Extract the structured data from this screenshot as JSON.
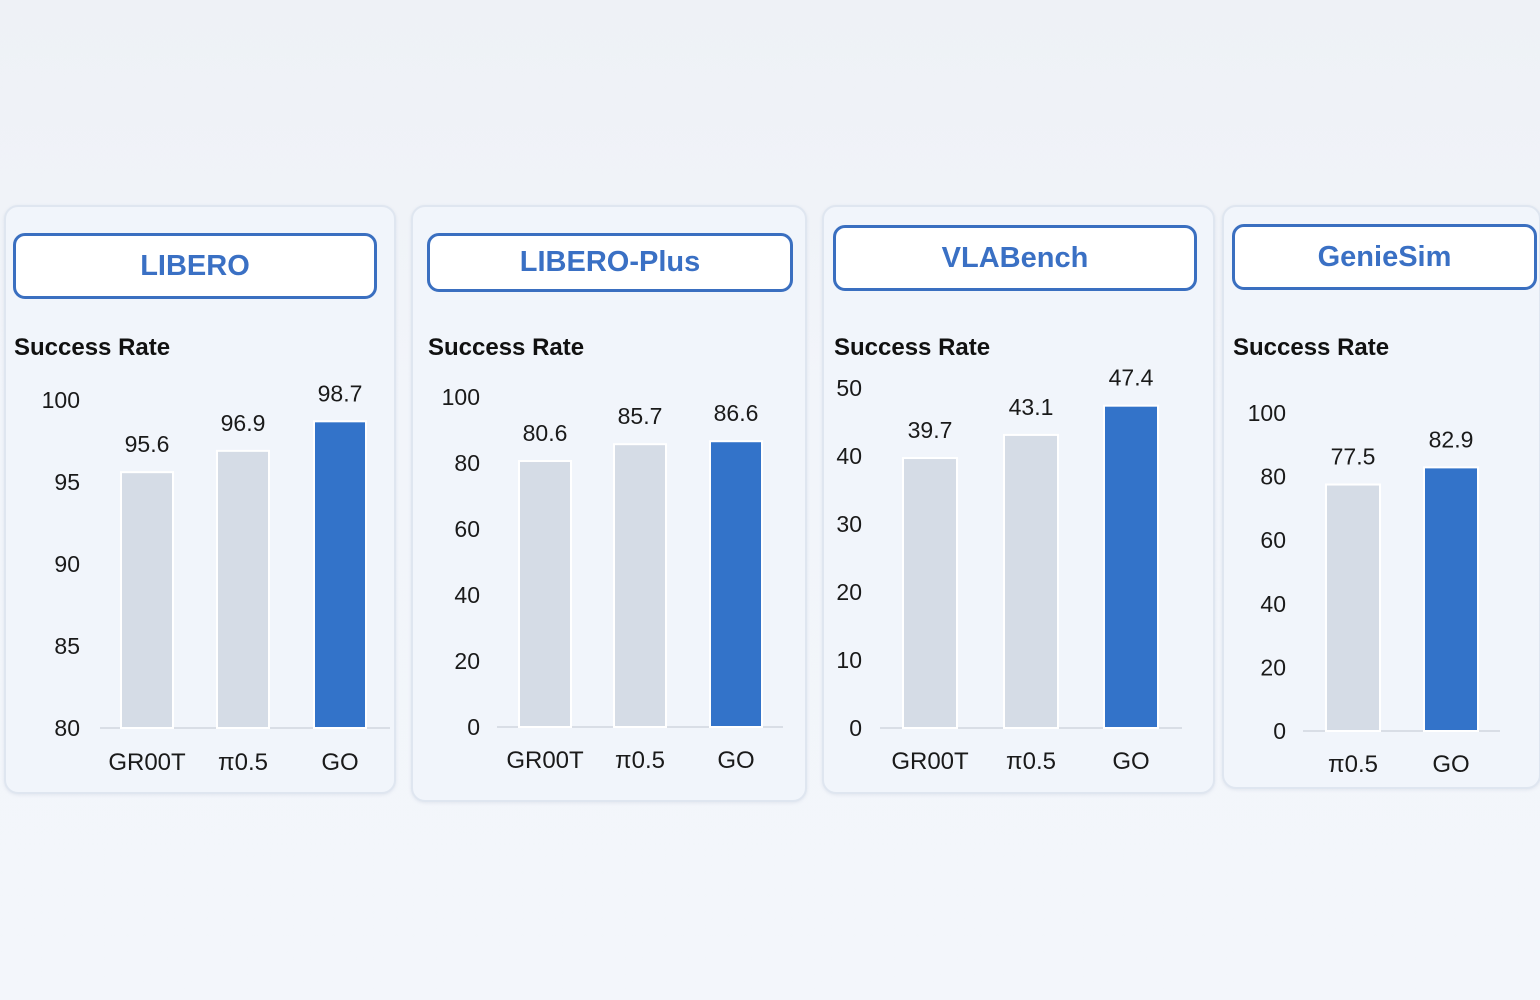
{
  "colors": {
    "highlight": "#3373c9",
    "baseline_bars": "#d5dce6",
    "title": "#3a70c4"
  },
  "chart_data": [
    {
      "type": "bar",
      "title": "LIBERO",
      "ylabel": "Success Rate",
      "categories": [
        "GR00T",
        "π0.5",
        "GO"
      ],
      "values": [
        95.6,
        96.9,
        98.7
      ],
      "data_labels": [
        "95.6",
        "96.9",
        "98.7"
      ],
      "ylim": [
        80,
        100
      ],
      "yticks": [
        "80",
        "85",
        "90",
        "95",
        "100"
      ],
      "highlight": "GO",
      "grid": false
    },
    {
      "type": "bar",
      "title": "LIBERO-Plus",
      "ylabel": "Success Rate",
      "categories": [
        "GR00T",
        "π0.5",
        "GO"
      ],
      "values": [
        80.6,
        85.7,
        86.6
      ],
      "data_labels": [
        "80.6",
        "85.7",
        "86.6"
      ],
      "ylim": [
        0,
        100
      ],
      "yticks": [
        "0",
        "20",
        "40",
        "60",
        "80",
        "100"
      ],
      "highlight": "GO",
      "grid": false
    },
    {
      "type": "bar",
      "title": "VLABench",
      "ylabel": "Success Rate",
      "categories": [
        "GR00T",
        "π0.5",
        "GO"
      ],
      "values": [
        39.7,
        43.1,
        47.4
      ],
      "data_labels": [
        "39.7",
        "43.1",
        "47.4"
      ],
      "ylim": [
        0,
        50
      ],
      "yticks": [
        "0",
        "10",
        "20",
        "30",
        "40",
        "50"
      ],
      "highlight": "GO",
      "grid": false
    },
    {
      "type": "bar",
      "title": "GenieSim",
      "ylabel": "Success Rate",
      "categories": [
        "π0.5",
        "GO"
      ],
      "values": [
        77.5,
        82.9
      ],
      "data_labels": [
        "77.5",
        "82.9"
      ],
      "ylim": [
        0,
        100
      ],
      "yticks": [
        "0",
        "20",
        "40",
        "60",
        "80",
        "100"
      ],
      "highlight": "GO",
      "grid": false
    }
  ]
}
